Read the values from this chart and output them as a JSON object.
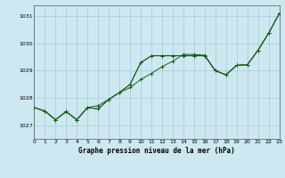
{
  "title": "Graphe pression niveau de la mer (hPa)",
  "bg_color": "#cde8f0",
  "grid_color": "#a8c8d8",
  "line_color": "#1a5c1a",
  "x_min": 0,
  "x_max": 23,
  "y_min": 1026.5,
  "y_max": 1031.4,
  "yticks": [
    1027,
    1028,
    1029,
    1030,
    1031
  ],
  "xticks": [
    0,
    1,
    2,
    3,
    4,
    5,
    6,
    7,
    8,
    9,
    10,
    11,
    12,
    13,
    14,
    15,
    16,
    17,
    18,
    19,
    20,
    21,
    22,
    23
  ],
  "series1_x": [
    0,
    1,
    2,
    3,
    4,
    5,
    6,
    7,
    8,
    9,
    10,
    11,
    12,
    13,
    14,
    15,
    16,
    17,
    18,
    19,
    20,
    21,
    22,
    23
  ],
  "series1_y": [
    1027.65,
    1027.52,
    1027.2,
    1027.5,
    1027.2,
    1027.65,
    1027.72,
    1027.95,
    1028.2,
    1028.38,
    1028.68,
    1028.9,
    1029.15,
    1029.35,
    1029.6,
    1029.6,
    1029.57,
    1029.0,
    1028.85,
    1029.2,
    1029.22,
    1029.75,
    1030.38,
    1031.1
  ],
  "series2_x": [
    0,
    1,
    2,
    3,
    4,
    5,
    6,
    7,
    8,
    9,
    10,
    11,
    12,
    13,
    14,
    15,
    16,
    17,
    18,
    19,
    20,
    21,
    22,
    23
  ],
  "series2_y": [
    1027.65,
    1027.52,
    1027.2,
    1027.5,
    1027.2,
    1027.65,
    1027.6,
    1027.95,
    1028.2,
    1028.5,
    1029.3,
    1029.55,
    1029.55,
    1029.55,
    1029.55,
    1029.55,
    1029.55,
    1029.0,
    1028.85,
    1029.2,
    1029.22,
    1029.75,
    1030.38,
    1031.1
  ],
  "series3_x": [
    0,
    1,
    2,
    3,
    4,
    5,
    6,
    7,
    8,
    9,
    10,
    11,
    12,
    13,
    14,
    15,
    16,
    17,
    18,
    19,
    20,
    21,
    22,
    23
  ],
  "series3_y": [
    1027.65,
    1027.52,
    1027.2,
    1027.5,
    1027.2,
    1027.65,
    1027.6,
    1027.95,
    1028.2,
    1028.5,
    1029.3,
    1029.55,
    1029.55,
    1029.55,
    1029.55,
    1029.55,
    1029.55,
    1029.0,
    1028.85,
    1029.2,
    1029.22,
    1029.75,
    1030.38,
    1031.1
  ]
}
